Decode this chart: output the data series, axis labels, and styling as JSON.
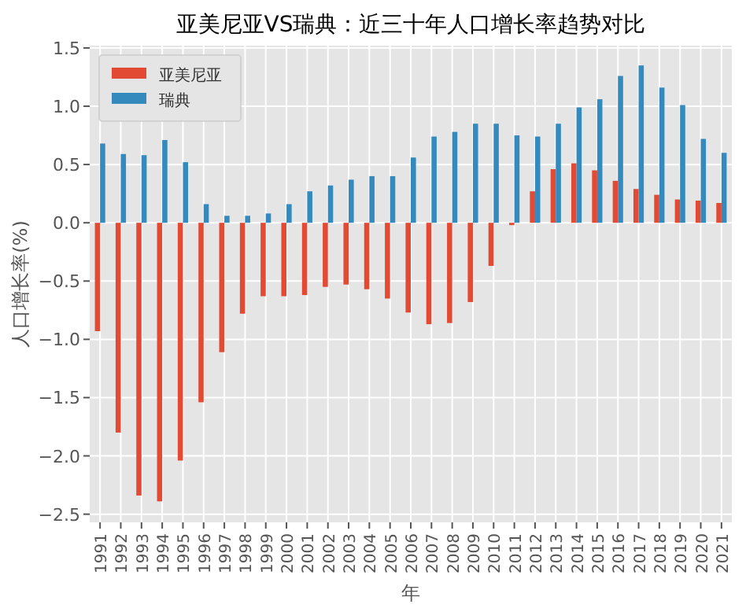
{
  "chart_data": {
    "type": "bar",
    "title": "亚美尼亚VS瑞典：近三十年人口增长率趋势对比",
    "xlabel": "年",
    "ylabel": "人口增长率(%)",
    "categories": [
      "1991",
      "1992",
      "1993",
      "1994",
      "1995",
      "1996",
      "1997",
      "1998",
      "1999",
      "2000",
      "2001",
      "2002",
      "2003",
      "2004",
      "2005",
      "2006",
      "2007",
      "2008",
      "2009",
      "2010",
      "2011",
      "2012",
      "2013",
      "2014",
      "2015",
      "2016",
      "2017",
      "2018",
      "2019",
      "2020",
      "2021"
    ],
    "series": [
      {
        "name": "亚美尼亚",
        "color": "#e24a33",
        "values": [
          -0.93,
          -1.8,
          -2.34,
          -2.39,
          -2.04,
          -1.54,
          -1.11,
          -0.78,
          -0.63,
          -0.63,
          -0.62,
          -0.55,
          -0.53,
          -0.57,
          -0.65,
          -0.77,
          -0.87,
          -0.86,
          -0.68,
          -0.37,
          -0.02,
          0.27,
          0.46,
          0.51,
          0.45,
          0.36,
          0.29,
          0.24,
          0.2,
          0.19,
          0.17
        ]
      },
      {
        "name": "瑞典",
        "color": "#348abd",
        "values": [
          0.68,
          0.59,
          0.58,
          0.71,
          0.52,
          0.16,
          0.06,
          0.06,
          0.08,
          0.16,
          0.27,
          0.32,
          0.37,
          0.4,
          0.4,
          0.56,
          0.74,
          0.78,
          0.85,
          0.85,
          0.75,
          0.74,
          0.85,
          0.99,
          1.06,
          1.26,
          1.35,
          1.16,
          1.01,
          0.72,
          0.6
        ]
      }
    ],
    "ylim": [
      -2.57,
      1.52
    ],
    "yticks": [
      {
        "value": -2.5,
        "label": "−2.5"
      },
      {
        "value": -2,
        "label": "−2.0"
      },
      {
        "value": -1.5,
        "label": "−1.5"
      },
      {
        "value": -1,
        "label": "−1.0"
      },
      {
        "value": -0.5,
        "label": "−0.5"
      },
      {
        "value": 0,
        "label": "0.0"
      },
      {
        "value": 0.5,
        "label": "0.5"
      },
      {
        "value": 1,
        "label": "1.0"
      },
      {
        "value": 1.5,
        "label": "1.5"
      }
    ],
    "grid": true,
    "legend": "top left"
  }
}
